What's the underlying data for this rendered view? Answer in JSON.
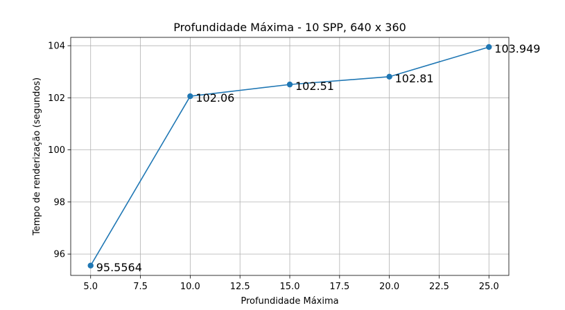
{
  "chart_data": {
    "type": "line",
    "title": "Profundidade Máxima - 10 SPP, 640 x 360",
    "xlabel": "Profundidade Máxima",
    "ylabel": "Tempo de renderização (segundos)",
    "x": [
      5,
      10,
      15,
      20,
      25
    ],
    "series": [
      {
        "values": [
          95.5564,
          102.06,
          102.51,
          102.81,
          103.949
        ]
      }
    ],
    "data_labels": [
      "95.5564",
      "102.06",
      "102.51",
      "102.81",
      "103.949"
    ],
    "xlim": [
      4.0,
      26.0
    ],
    "ylim": [
      95.18,
      104.32
    ],
    "xticks": [
      5.0,
      7.5,
      10.0,
      12.5,
      15.0,
      17.5,
      20.0,
      22.5,
      25.0
    ],
    "xtick_labels": [
      "5.0",
      "7.5",
      "10.0",
      "12.5",
      "15.0",
      "17.5",
      "20.0",
      "22.5",
      "25.0"
    ],
    "yticks": [
      96,
      98,
      100,
      102,
      104
    ],
    "ytick_labels": [
      "96",
      "98",
      "100",
      "102",
      "104"
    ],
    "grid": true,
    "colors": {
      "line": "#1f77b4",
      "grid": "#b0b0b0",
      "axis": "#000000"
    }
  }
}
